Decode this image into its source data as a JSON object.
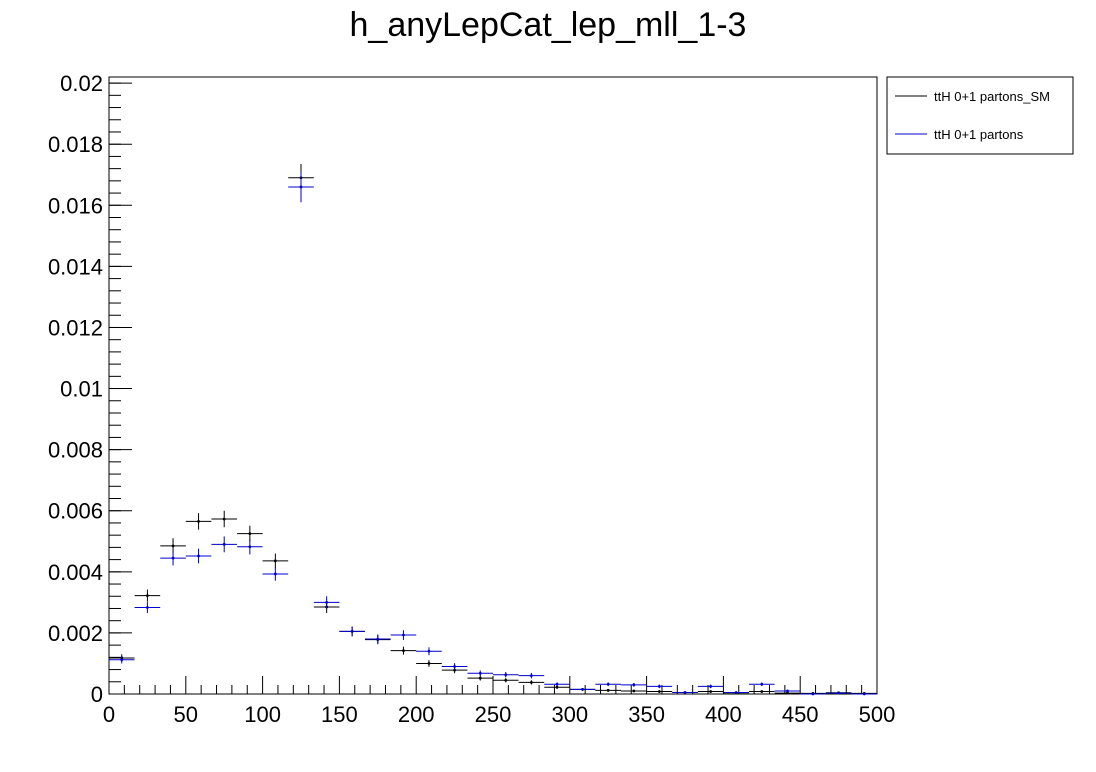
{
  "chart_data": {
    "type": "scatter",
    "title": "h_anyLepCat_lep_mll_1-3",
    "xlabel": "",
    "ylabel": "",
    "xlim": [
      0,
      500
    ],
    "ylim": [
      0,
      0.0202
    ],
    "x_ticks": [
      "0",
      "50",
      "100",
      "150",
      "200",
      "250",
      "300",
      "350",
      "400",
      "450",
      "500"
    ],
    "y_ticks": [
      "0",
      "0.002",
      "0.004",
      "0.006",
      "0.008",
      "0.01",
      "0.012",
      "0.014",
      "0.016",
      "0.018",
      "0.02"
    ],
    "bin_width": 16.67,
    "legend_position": "top-right",
    "series": [
      {
        "name": "ttH 0+1 partons_SM",
        "color": "#000000",
        "x": [
          8.3,
          25.0,
          41.7,
          58.3,
          75.0,
          91.7,
          108.3,
          125.0,
          141.7,
          158.3,
          175.0,
          191.7,
          208.3,
          225.0,
          241.7,
          258.3,
          275.0,
          291.7,
          308.3,
          325.0,
          341.7,
          358.3,
          375.0,
          391.7,
          408.3,
          425.0,
          441.7,
          458.3,
          475.0,
          491.7
        ],
        "y": [
          0.00118,
          0.00322,
          0.00485,
          0.00565,
          0.00573,
          0.00525,
          0.00436,
          0.0169,
          0.00285,
          0.00205,
          0.00178,
          0.00142,
          0.001,
          0.00078,
          0.00052,
          0.00045,
          0.00038,
          0.00022,
          0.00015,
          0.00012,
          0.0001,
          8e-05,
          5e-05,
          8e-05,
          4e-05,
          8e-05,
          3e-05,
          2e-05,
          4e-05,
          2e-05
        ],
        "yerr": [
          0.00012,
          0.0002,
          0.00025,
          0.00027,
          0.00027,
          0.00026,
          0.00024,
          0.00045,
          0.0002,
          0.00016,
          0.00015,
          0.00013,
          0.00011,
          0.0001,
          8e-05,
          7e-05,
          7e-05,
          5e-05,
          4e-05,
          4e-05,
          3e-05,
          3e-05,
          2e-05,
          3e-05,
          2e-05,
          3e-05,
          2e-05,
          1e-05,
          2e-05,
          1e-05
        ]
      },
      {
        "name": "ttH 0+1 partons",
        "color": "#0000cc",
        "x": [
          8.3,
          25.0,
          41.7,
          58.3,
          75.0,
          91.7,
          108.3,
          125.0,
          141.7,
          158.3,
          175.0,
          191.7,
          208.3,
          225.0,
          241.7,
          258.3,
          275.0,
          291.7,
          308.3,
          325.0,
          341.7,
          358.3,
          375.0,
          391.7,
          408.3,
          425.0,
          441.7,
          458.3,
          475.0,
          491.7
        ],
        "y": [
          0.00112,
          0.00283,
          0.00445,
          0.00452,
          0.0049,
          0.00482,
          0.00393,
          0.0166,
          0.003,
          0.00205,
          0.0018,
          0.00193,
          0.0014,
          0.0009,
          0.00068,
          0.00063,
          0.0006,
          0.00032,
          0.00015,
          0.00032,
          0.0003,
          0.00025,
          5e-05,
          0.00025,
          5e-05,
          0.00032,
          0.0001,
          0.0,
          3e-05,
          0.0
        ],
        "yerr": [
          0.00012,
          0.00018,
          0.00024,
          0.00024,
          0.00026,
          0.00025,
          0.00022,
          0.0005,
          0.0002,
          0.00016,
          0.00015,
          0.00016,
          0.00013,
          0.00011,
          9e-05,
          9e-05,
          9e-05,
          6e-05,
          4e-05,
          6e-05,
          6e-05,
          6e-05,
          2e-05,
          6e-05,
          2e-05,
          6e-05,
          3e-05,
          0.0,
          2e-05,
          0.0
        ]
      }
    ]
  }
}
